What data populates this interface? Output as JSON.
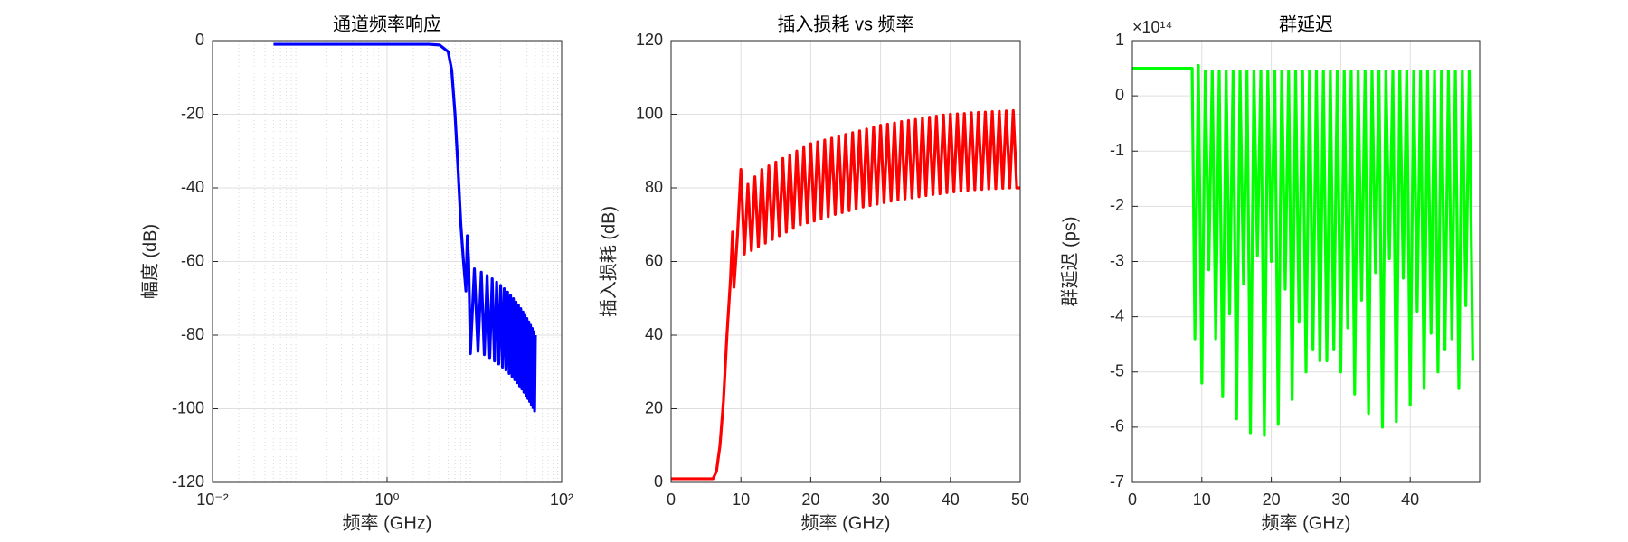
{
  "chart_data": [
    {
      "type": "line",
      "title": "通道频率响应",
      "xlabel": "频率 (GHz)",
      "ylabel": "幅度 (dB)",
      "xscale": "log",
      "grid": true,
      "minor_grid": true,
      "color": "#0000ff",
      "xlim": [
        0.01,
        100
      ],
      "xticks": [
        {
          "value": 0.01,
          "label": "10⁻²"
        },
        {
          "value": 1,
          "label": "10⁰"
        },
        {
          "value": 100,
          "label": "10²"
        }
      ],
      "ylim": [
        -120,
        0
      ],
      "yticks": [
        0,
        -20,
        -40,
        -60,
        -80,
        -100,
        -120
      ],
      "x": [
        0.05,
        0.1,
        0.5,
        1,
        2,
        3,
        4,
        5,
        5.5,
        6,
        6.5,
        7,
        7.5,
        8,
        8.3,
        8.6,
        9,
        10,
        11,
        12,
        13,
        14,
        15,
        16,
        17,
        18,
        19,
        20,
        21,
        22,
        23,
        24,
        25,
        26,
        27,
        28,
        29,
        30,
        31,
        32,
        33,
        34,
        35,
        36,
        37,
        38,
        39,
        40,
        41,
        42,
        43,
        44,
        45,
        46,
        47,
        48,
        49,
        50
      ],
      "values": [
        -1,
        -1,
        -1,
        -1,
        -1,
        -1,
        -1.2,
        -3,
        -8,
        -20,
        -35,
        -50,
        -60,
        -68,
        -53,
        -60,
        -85,
        -62,
        -84.4,
        -62.9,
        -85.3,
        -63.8,
        -86.1,
        -64.7,
        -87,
        -65.6,
        -87.8,
        -66.5,
        -88.7,
        -67.4,
        -89.5,
        -68.3,
        -90.4,
        -69.2,
        -91.2,
        -70.1,
        -92.1,
        -71,
        -92.9,
        -71.9,
        -93.8,
        -72.8,
        -94.6,
        -73.7,
        -95.5,
        -74.6,
        -96.3,
        -75.5,
        -97.2,
        -76.4,
        -98,
        -77.3,
        -98.9,
        -78.2,
        -99.7,
        -79.1,
        -100.6,
        -80
      ]
    },
    {
      "type": "line",
      "title": "插入损耗 vs 频率",
      "xlabel": "频率 (GHz)",
      "ylabel": "插入损耗 (dB)",
      "grid": true,
      "color": "#ff0000",
      "xlim": [
        0,
        50
      ],
      "xticks": [
        0,
        10,
        20,
        30,
        40,
        50
      ],
      "ylim": [
        0,
        120
      ],
      "yticks": [
        0,
        20,
        40,
        60,
        80,
        100,
        120
      ],
      "x": [
        0,
        6,
        6.5,
        7,
        7.5,
        8,
        8.5,
        8.8,
        9,
        9.5,
        10,
        10.5,
        11,
        11.5,
        12,
        12.5,
        13,
        13.5,
        14,
        14.5,
        15,
        15.5,
        16,
        16.5,
        17,
        17.5,
        18,
        18.5,
        19,
        19.5,
        20,
        20.5,
        21,
        21.5,
        22,
        22.5,
        23,
        23.5,
        24,
        24.5,
        25,
        25.5,
        26,
        26.5,
        27,
        27.5,
        28,
        28.5,
        29,
        29.5,
        30,
        30.5,
        31,
        31.5,
        32,
        32.5,
        33,
        33.5,
        34,
        34.5,
        35,
        35.5,
        36,
        36.5,
        37,
        37.5,
        38,
        38.5,
        39,
        39.5,
        40,
        40.5,
        41,
        41.5,
        42,
        42.5,
        43,
        43.5,
        44,
        44.5,
        45,
        45.5,
        46,
        46.5,
        47,
        47.5,
        48,
        48.5,
        49,
        49.5,
        50
      ],
      "values": [
        1,
        1,
        3,
        10,
        22,
        40,
        55,
        68,
        53,
        67,
        85,
        62,
        81,
        63,
        83,
        64,
        85,
        65,
        86,
        66,
        87,
        67,
        88,
        68,
        89,
        69,
        90,
        70,
        91,
        70.5,
        92,
        71,
        92.5,
        71.6,
        93,
        72.2,
        93.5,
        72.8,
        94,
        73.3,
        94.5,
        73.8,
        95,
        74.3,
        95.5,
        74.8,
        96,
        75.2,
        96.5,
        75.6,
        97,
        76,
        97.3,
        76.4,
        97.6,
        76.7,
        98,
        77,
        98.3,
        77.3,
        98.6,
        77.6,
        99,
        77.9,
        99.2,
        78.2,
        99.5,
        78.4,
        99.8,
        78.7,
        100,
        78.9,
        100.1,
        79.1,
        100.2,
        79.3,
        100.4,
        79.5,
        100.5,
        79.6,
        100.6,
        79.7,
        100.7,
        79.8,
        100.8,
        79.9,
        100.9,
        80,
        101,
        80,
        80
      ]
    },
    {
      "type": "line",
      "title": "群延迟",
      "xlabel": "频率 (GHz)",
      "ylabel": "群延迟 (ps)",
      "y_exponent_label": "×10¹⁴",
      "grid": true,
      "color": "#00ff00",
      "xlim": [
        0,
        50
      ],
      "xticks": [
        0,
        10,
        20,
        30,
        40
      ],
      "ylim": [
        -7,
        1
      ],
      "yticks": [
        1,
        0,
        -1,
        -2,
        -3,
        -4,
        -5,
        -6,
        -7
      ],
      "x": [
        0,
        8.6,
        9,
        9.5,
        10,
        10.5,
        11,
        11.5,
        12,
        12.5,
        13,
        13.5,
        14,
        14.5,
        15,
        15.5,
        16,
        16.5,
        17,
        17.5,
        18,
        18.5,
        19,
        19.5,
        20,
        20.5,
        21,
        21.5,
        22,
        22.5,
        23,
        23.5,
        24,
        24.5,
        25,
        25.5,
        26,
        26.5,
        27,
        27.5,
        28,
        28.5,
        29,
        29.5,
        30,
        30.5,
        31,
        31.5,
        32,
        32.5,
        33,
        33.5,
        34,
        34.5,
        35,
        35.5,
        36,
        36.5,
        37,
        37.5,
        38,
        38.5,
        39,
        39.5,
        40,
        40.5,
        41,
        41.5,
        42,
        42.5,
        43,
        43.5,
        44,
        44.5,
        45,
        45.5,
        46,
        46.5,
        47,
        47.5,
        48,
        48.5,
        49
      ],
      "values": [
        0.5,
        0.5,
        -4.4,
        0.55,
        -5.2,
        0.45,
        -3.15,
        0.45,
        -4.4,
        0.45,
        -5.45,
        0.45,
        -3.95,
        0.45,
        -5.85,
        0.45,
        -3.4,
        0.45,
        -6.1,
        0.45,
        -2.9,
        0.45,
        -6.15,
        0.45,
        -3.0,
        0.45,
        -5.95,
        0.45,
        -3.5,
        0.45,
        -5.5,
        0.45,
        -4.1,
        0.45,
        -5.0,
        0.45,
        -4.6,
        0.45,
        -4.8,
        0.45,
        -4.8,
        0.45,
        -4.6,
        0.45,
        -5.0,
        0.45,
        -4.2,
        0.45,
        -5.4,
        0.45,
        -3.7,
        0.45,
        -5.75,
        0.45,
        -3.2,
        0.45,
        -6.0,
        0.45,
        -2.95,
        0.45,
        -5.9,
        0.45,
        -3.3,
        0.45,
        -5.6,
        0.45,
        -3.9,
        0.45,
        -5.3,
        0.45,
        -4.3,
        0.45,
        -5.0,
        0.45,
        -4.6,
        0.45,
        -4.4,
        0.45,
        -5.3,
        0.45,
        -3.8,
        0.45,
        -4.8
      ]
    }
  ]
}
